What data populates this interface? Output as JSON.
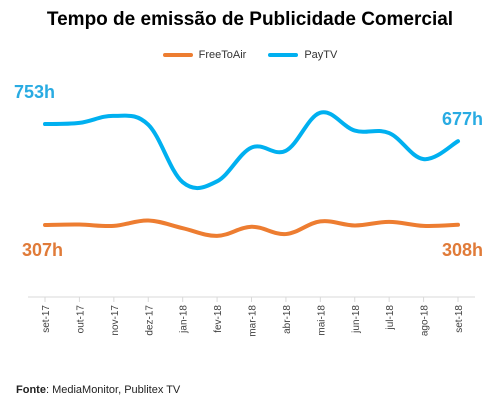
{
  "chart_data": {
    "type": "line",
    "title": "Tempo de emissão de Publicidade Comercial",
    "categories": [
      "set-17",
      "out-17",
      "nov-17",
      "dez-17",
      "jan-18",
      "fev-18",
      "mar-18",
      "abr-18",
      "mai-18",
      "jun-18",
      "jul-18",
      "ago-18",
      "set-18"
    ],
    "series": [
      {
        "name": "FreeToAir",
        "color": "#ED7D31",
        "values": [
          307,
          309,
          303,
          327,
          293,
          259,
          299,
          267,
          323,
          305,
          321,
          303,
          308
        ]
      },
      {
        "name": "PayTV",
        "color": "#00B0F0",
        "values": [
          753,
          758,
          789,
          750,
          496,
          500,
          649,
          635,
          803,
          724,
          713,
          598,
          677
        ]
      }
    ],
    "annotations": {
      "paytv_start": "753h",
      "paytv_end": "677h",
      "freetoair_start": "307h",
      "freetoair_end": "308h"
    },
    "ylim": [
      0,
      1000
    ],
    "grid": false,
    "legend_position": "top"
  },
  "source": {
    "label": "Fonte",
    "text": ": MediaMonitor, Publitex TV"
  }
}
